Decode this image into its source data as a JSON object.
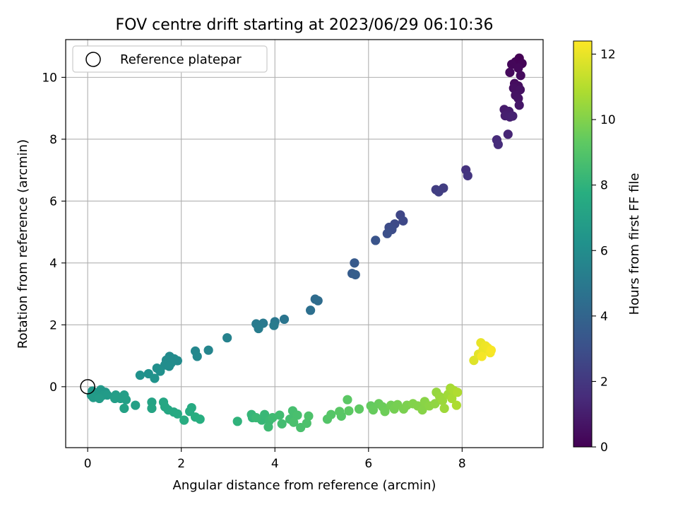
{
  "chart_data": {
    "type": "scatter",
    "title": "FOV centre drift starting at 2023/06/29 06:10:36",
    "xlabel": "Angular distance from reference (arcmin)",
    "ylabel": "Rotation from reference (arcmin)",
    "xlim": [
      -0.47,
      9.73
    ],
    "ylim": [
      -1.97,
      11.22
    ],
    "xticks": [
      0,
      2,
      4,
      6,
      8
    ],
    "yticks": [
      0,
      2,
      4,
      6,
      8,
      10
    ],
    "grid": true,
    "legend": {
      "position": "top-left",
      "entries": [
        "Reference platepar"
      ]
    },
    "reference_point": {
      "x": 0,
      "y": 0,
      "label": "Reference platepar"
    },
    "colorbar": {
      "label": "Hours from first FF file",
      "range": [
        0,
        12.4
      ],
      "ticks": [
        0,
        2,
        4,
        6,
        8,
        10,
        12
      ],
      "colormap": "viridis"
    },
    "points": [
      {
        "x": 9.22,
        "y": 10.62,
        "t": 0.0
      },
      {
        "x": 9.14,
        "y": 10.5,
        "t": 0.1
      },
      {
        "x": 9.28,
        "y": 10.45,
        "t": 0.15
      },
      {
        "x": 9.06,
        "y": 10.42,
        "t": 0.2
      },
      {
        "x": 9.2,
        "y": 10.3,
        "t": 0.25
      },
      {
        "x": 9.02,
        "y": 10.16,
        "t": 0.3
      },
      {
        "x": 9.25,
        "y": 10.06,
        "t": 0.35
      },
      {
        "x": 9.12,
        "y": 9.8,
        "t": 0.4
      },
      {
        "x": 9.2,
        "y": 9.72,
        "t": 0.45
      },
      {
        "x": 9.1,
        "y": 9.65,
        "t": 0.5
      },
      {
        "x": 9.24,
        "y": 9.6,
        "t": 0.55
      },
      {
        "x": 9.14,
        "y": 9.42,
        "t": 0.6
      },
      {
        "x": 9.2,
        "y": 9.32,
        "t": 0.65
      },
      {
        "x": 9.22,
        "y": 9.1,
        "t": 0.75
      },
      {
        "x": 8.9,
        "y": 8.96,
        "t": 0.9
      },
      {
        "x": 9.0,
        "y": 8.9,
        "t": 1.0
      },
      {
        "x": 8.92,
        "y": 8.76,
        "t": 1.05
      },
      {
        "x": 9.02,
        "y": 8.72,
        "t": 1.1
      },
      {
        "x": 9.08,
        "y": 8.75,
        "t": 1.15
      },
      {
        "x": 8.98,
        "y": 8.16,
        "t": 1.3
      },
      {
        "x": 8.74,
        "y": 7.98,
        "t": 1.5
      },
      {
        "x": 8.77,
        "y": 7.83,
        "t": 1.55
      },
      {
        "x": 8.08,
        "y": 7.01,
        "t": 1.8
      },
      {
        "x": 8.12,
        "y": 6.82,
        "t": 1.9
      },
      {
        "x": 7.44,
        "y": 6.37,
        "t": 2.2
      },
      {
        "x": 7.5,
        "y": 6.3,
        "t": 2.3
      },
      {
        "x": 7.6,
        "y": 6.42,
        "t": 2.25
      },
      {
        "x": 6.68,
        "y": 5.55,
        "t": 2.6
      },
      {
        "x": 6.74,
        "y": 5.36,
        "t": 2.7
      },
      {
        "x": 6.56,
        "y": 5.26,
        "t": 2.75
      },
      {
        "x": 6.44,
        "y": 5.15,
        "t": 2.85
      },
      {
        "x": 6.5,
        "y": 5.08,
        "t": 2.9
      },
      {
        "x": 6.4,
        "y": 4.95,
        "t": 3.0
      },
      {
        "x": 6.15,
        "y": 4.73,
        "t": 3.2
      },
      {
        "x": 5.7,
        "y": 4.0,
        "t": 3.5
      },
      {
        "x": 5.65,
        "y": 3.66,
        "t": 3.6
      },
      {
        "x": 5.72,
        "y": 3.62,
        "t": 3.7
      },
      {
        "x": 4.86,
        "y": 2.83,
        "t": 4.3
      },
      {
        "x": 4.92,
        "y": 2.78,
        "t": 4.35
      },
      {
        "x": 4.76,
        "y": 2.47,
        "t": 4.5
      },
      {
        "x": 4.2,
        "y": 2.18,
        "t": 4.8
      },
      {
        "x": 4.0,
        "y": 2.1,
        "t": 4.9
      },
      {
        "x": 3.75,
        "y": 2.05,
        "t": 5.0
      },
      {
        "x": 3.6,
        "y": 2.03,
        "t": 5.05
      },
      {
        "x": 3.98,
        "y": 1.98,
        "t": 5.1
      },
      {
        "x": 3.65,
        "y": 1.88,
        "t": 5.15
      },
      {
        "x": 2.98,
        "y": 1.58,
        "t": 5.45
      },
      {
        "x": 2.58,
        "y": 1.18,
        "t": 5.6
      },
      {
        "x": 2.3,
        "y": 1.15,
        "t": 5.7
      },
      {
        "x": 2.34,
        "y": 0.98,
        "t": 5.75
      },
      {
        "x": 1.75,
        "y": 0.98,
        "t": 5.85
      },
      {
        "x": 1.85,
        "y": 0.9,
        "t": 5.88
      },
      {
        "x": 1.68,
        "y": 0.86,
        "t": 5.9
      },
      {
        "x": 1.92,
        "y": 0.84,
        "t": 5.92
      },
      {
        "x": 1.78,
        "y": 0.76,
        "t": 5.95
      },
      {
        "x": 1.65,
        "y": 0.7,
        "t": 6.0
      },
      {
        "x": 1.74,
        "y": 0.66,
        "t": 6.02
      },
      {
        "x": 1.48,
        "y": 0.6,
        "t": 6.1
      },
      {
        "x": 1.55,
        "y": 0.5,
        "t": 6.15
      },
      {
        "x": 1.3,
        "y": 0.42,
        "t": 6.2
      },
      {
        "x": 1.12,
        "y": 0.37,
        "t": 6.25
      },
      {
        "x": 1.43,
        "y": 0.27,
        "t": 6.3
      },
      {
        "x": 0.1,
        "y": -0.14,
        "t": 6.5
      },
      {
        "x": 0.28,
        "y": -0.1,
        "t": 6.55
      },
      {
        "x": 0.38,
        "y": -0.18,
        "t": 6.6
      },
      {
        "x": 0.18,
        "y": -0.2,
        "t": 6.62
      },
      {
        "x": 0.08,
        "y": -0.28,
        "t": 6.65
      },
      {
        "x": 0.22,
        "y": -0.32,
        "t": 6.68
      },
      {
        "x": 0.32,
        "y": -0.28,
        "t": 6.7
      },
      {
        "x": 0.42,
        "y": -0.27,
        "t": 6.72
      },
      {
        "x": 0.12,
        "y": -0.35,
        "t": 6.75
      },
      {
        "x": 0.25,
        "y": -0.38,
        "t": 6.77
      },
      {
        "x": 0.6,
        "y": -0.27,
        "t": 6.85
      },
      {
        "x": 0.78,
        "y": -0.27,
        "t": 6.88
      },
      {
        "x": 0.58,
        "y": -0.38,
        "t": 6.9
      },
      {
        "x": 0.7,
        "y": -0.38,
        "t": 6.92
      },
      {
        "x": 0.82,
        "y": -0.42,
        "t": 6.95
      },
      {
        "x": 1.02,
        "y": -0.6,
        "t": 7.0
      },
      {
        "x": 0.78,
        "y": -0.7,
        "t": 7.05
      },
      {
        "x": 1.37,
        "y": -0.5,
        "t": 7.15
      },
      {
        "x": 1.37,
        "y": -0.7,
        "t": 7.2
      },
      {
        "x": 1.62,
        "y": -0.5,
        "t": 7.3
      },
      {
        "x": 1.65,
        "y": -0.65,
        "t": 7.35
      },
      {
        "x": 1.72,
        "y": -0.75,
        "t": 7.4
      },
      {
        "x": 1.84,
        "y": -0.82,
        "t": 7.45
      },
      {
        "x": 1.92,
        "y": -0.88,
        "t": 7.5
      },
      {
        "x": 2.22,
        "y": -0.68,
        "t": 7.55
      },
      {
        "x": 2.18,
        "y": -0.8,
        "t": 7.6
      },
      {
        "x": 2.06,
        "y": -1.08,
        "t": 7.65
      },
      {
        "x": 2.3,
        "y": -0.98,
        "t": 7.7
      },
      {
        "x": 2.4,
        "y": -1.05,
        "t": 7.75
      },
      {
        "x": 3.2,
        "y": -1.12,
        "t": 8.0
      },
      {
        "x": 3.52,
        "y": -1.0,
        "t": 8.1
      },
      {
        "x": 3.5,
        "y": -0.9,
        "t": 8.15
      },
      {
        "x": 3.72,
        "y": -1.08,
        "t": 8.2
      },
      {
        "x": 3.78,
        "y": -0.9,
        "t": 8.25
      },
      {
        "x": 3.6,
        "y": -1.0,
        "t": 8.3
      },
      {
        "x": 3.88,
        "y": -1.1,
        "t": 8.35
      },
      {
        "x": 3.86,
        "y": -1.3,
        "t": 8.4
      },
      {
        "x": 3.95,
        "y": -1.0,
        "t": 8.45
      },
      {
        "x": 4.1,
        "y": -0.92,
        "t": 8.5
      },
      {
        "x": 4.15,
        "y": -1.2,
        "t": 8.55
      },
      {
        "x": 4.32,
        "y": -1.05,
        "t": 8.6
      },
      {
        "x": 4.38,
        "y": -0.78,
        "t": 8.65
      },
      {
        "x": 4.48,
        "y": -0.92,
        "t": 8.7
      },
      {
        "x": 4.4,
        "y": -1.15,
        "t": 8.72
      },
      {
        "x": 4.55,
        "y": -1.32,
        "t": 8.75
      },
      {
        "x": 4.68,
        "y": -1.18,
        "t": 8.8
      },
      {
        "x": 4.72,
        "y": -0.95,
        "t": 8.85
      },
      {
        "x": 5.12,
        "y": -1.05,
        "t": 9.0
      },
      {
        "x": 5.2,
        "y": -0.9,
        "t": 9.05
      },
      {
        "x": 5.42,
        "y": -0.95,
        "t": 9.1
      },
      {
        "x": 5.38,
        "y": -0.8,
        "t": 9.15
      },
      {
        "x": 5.55,
        "y": -0.42,
        "t": 9.2
      },
      {
        "x": 5.58,
        "y": -0.78,
        "t": 9.25
      },
      {
        "x": 5.8,
        "y": -0.72,
        "t": 9.3
      },
      {
        "x": 6.05,
        "y": -0.62,
        "t": 9.4
      },
      {
        "x": 6.1,
        "y": -0.75,
        "t": 9.45
      },
      {
        "x": 6.22,
        "y": -0.55,
        "t": 9.5
      },
      {
        "x": 6.3,
        "y": -0.65,
        "t": 9.55
      },
      {
        "x": 6.35,
        "y": -0.8,
        "t": 9.6
      },
      {
        "x": 6.48,
        "y": -0.6,
        "t": 9.7
      },
      {
        "x": 6.55,
        "y": -0.72,
        "t": 9.75
      },
      {
        "x": 6.62,
        "y": -0.58,
        "t": 9.8
      },
      {
        "x": 6.75,
        "y": -0.72,
        "t": 9.85
      },
      {
        "x": 6.82,
        "y": -0.6,
        "t": 9.9
      },
      {
        "x": 6.95,
        "y": -0.55,
        "t": 10.0
      },
      {
        "x": 7.05,
        "y": -0.62,
        "t": 10.05
      },
      {
        "x": 7.15,
        "y": -0.75,
        "t": 10.1
      },
      {
        "x": 7.2,
        "y": -0.48,
        "t": 10.15
      },
      {
        "x": 7.3,
        "y": -0.62,
        "t": 10.2
      },
      {
        "x": 7.42,
        "y": -0.55,
        "t": 10.3
      },
      {
        "x": 7.45,
        "y": -0.18,
        "t": 10.4
      },
      {
        "x": 7.52,
        "y": -0.32,
        "t": 10.45
      },
      {
        "x": 7.58,
        "y": -0.45,
        "t": 10.5
      },
      {
        "x": 7.62,
        "y": -0.7,
        "t": 10.55
      },
      {
        "x": 7.7,
        "y": -0.25,
        "t": 10.6
      },
      {
        "x": 7.75,
        "y": -0.05,
        "t": 10.7
      },
      {
        "x": 7.78,
        "y": -0.38,
        "t": 10.75
      },
      {
        "x": 7.82,
        "y": -0.12,
        "t": 10.8
      },
      {
        "x": 7.88,
        "y": -0.6,
        "t": 10.85
      },
      {
        "x": 7.9,
        "y": -0.18,
        "t": 10.9
      },
      {
        "x": 8.25,
        "y": 0.85,
        "t": 11.8
      },
      {
        "x": 8.35,
        "y": 1.05,
        "t": 11.9
      },
      {
        "x": 8.4,
        "y": 1.42,
        "t": 12.0
      },
      {
        "x": 8.45,
        "y": 1.2,
        "t": 12.05
      },
      {
        "x": 8.5,
        "y": 1.32,
        "t": 12.1
      },
      {
        "x": 8.55,
        "y": 1.25,
        "t": 12.15
      },
      {
        "x": 8.6,
        "y": 1.1,
        "t": 12.2
      },
      {
        "x": 8.62,
        "y": 1.18,
        "t": 12.3
      },
      {
        "x": 8.42,
        "y": 0.98,
        "t": 12.25
      }
    ]
  }
}
